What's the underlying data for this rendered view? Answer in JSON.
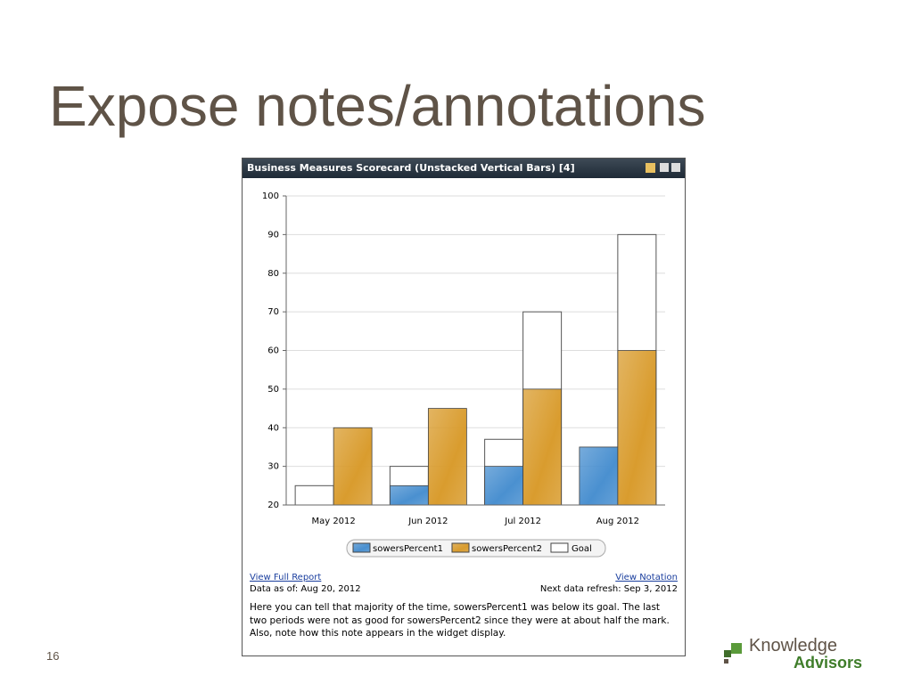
{
  "slide": {
    "title": "Expose notes/annotations",
    "page_number": "16",
    "logo": {
      "line1": "Knowledge",
      "line2": "Advisors"
    }
  },
  "widget": {
    "title": "Business Measures Scorecard (Unstacked Vertical Bars) [4]",
    "link_report": "View Full Report",
    "link_notation": "View Notation",
    "data_as_of": "Data as of: Aug 20, 2012",
    "next_refresh": "Next data refresh: Sep 3, 2012",
    "note": "Here you can tell that majority of the time, sowersPercent1 was below its goal. The last two periods were not as good for sowersPercent2 since they were at about half the mark. Also, note how this note appears in the widget display."
  },
  "chart_data": {
    "type": "bar",
    "categories": [
      "May 2012",
      "Jun 2012",
      "Jul 2012",
      "Aug 2012"
    ],
    "series": [
      {
        "name": "sowersPercent1",
        "color": "#4a90d0",
        "values": [
          null,
          25,
          30,
          35
        ],
        "goals": [
          25,
          30,
          37,
          null
        ]
      },
      {
        "name": "sowersPercent2",
        "color": "#d99c2e",
        "values": [
          40,
          45,
          50,
          60
        ],
        "goals": [
          null,
          null,
          70,
          90
        ]
      }
    ],
    "goal_legend": {
      "name": "Goal",
      "color": "#ffffff"
    },
    "ylim": [
      20,
      100
    ],
    "yticks": [
      20,
      30,
      40,
      50,
      60,
      70,
      80,
      90,
      100
    ],
    "grid": true
  }
}
